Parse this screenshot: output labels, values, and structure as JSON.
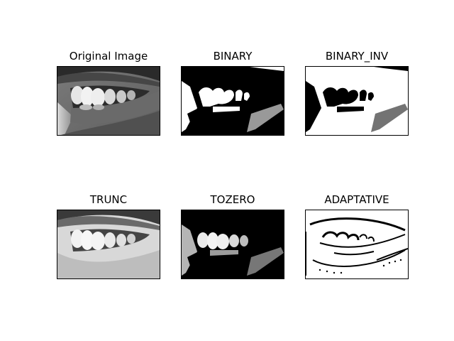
{
  "figure": {
    "panels": [
      {
        "title": "Original Image",
        "variant": "original"
      },
      {
        "title": "BINARY",
        "variant": "binary"
      },
      {
        "title": "BINARY_INV",
        "variant": "binary-inv"
      },
      {
        "title": "TRUNC",
        "variant": "trunc"
      },
      {
        "title": "TOZERO",
        "variant": "tozero"
      },
      {
        "title": "ADAPTATIVE",
        "variant": "adaptive"
      }
    ]
  },
  "colors": {
    "background": "#ffffff",
    "frame": "#000000"
  }
}
